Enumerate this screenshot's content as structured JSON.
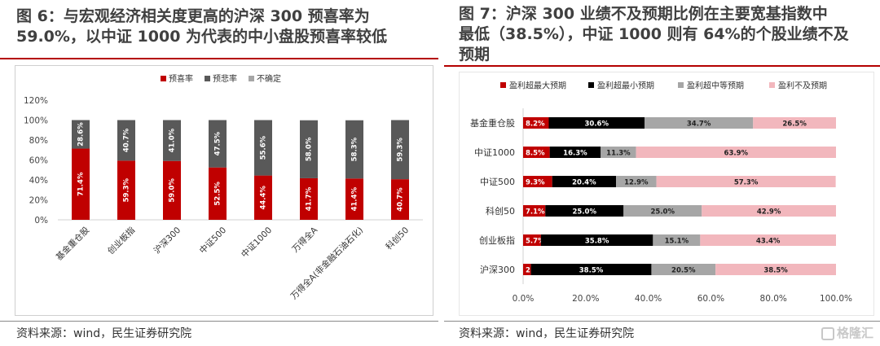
{
  "colors": {
    "red": "#c00000",
    "gray": "#595959",
    "lightgray": "#a6a6a6",
    "black": "#000000",
    "pink": "#f2b7bd"
  },
  "left": {
    "title_line1": "图 6：与宏观经济相关度更高的沪深 300 预喜率为",
    "title_line2": "59.0%，以中证 1000 为代表的中小盘股预喜率较低",
    "source": "资料来源：wind，民生证券研究院"
  },
  "right": {
    "title_line1": "图 7：沪深 300 业绩不及预期比例在主要宽基指数中",
    "title_line2": "最低（38.5%），中证 1000 则有 64%的个股业绩不及",
    "title_line3": "预期",
    "source": "资料来源：wind，民生证券研究院"
  },
  "watermark": "格隆汇",
  "chart_data": [
    {
      "type": "bar",
      "stacked": true,
      "categories": [
        "基金重仓股",
        "创业板指",
        "沪深300",
        "中证500",
        "中证1000",
        "万得全A",
        "万得全A(非金融石油石化)",
        "科创50"
      ],
      "series": [
        {
          "name": "预喜率",
          "values": [
            71.4,
            59.3,
            59.0,
            52.5,
            44.4,
            41.7,
            41.4,
            40.7
          ]
        },
        {
          "name": "预悲率",
          "values": [
            28.6,
            40.7,
            41.0,
            47.5,
            55.6,
            58.0,
            58.3,
            59.3
          ]
        },
        {
          "name": "不确定",
          "values": [
            0,
            0,
            0,
            0,
            0,
            0.3,
            0.3,
            0
          ]
        }
      ],
      "yticks": [
        "0%",
        "20%",
        "40%",
        "60%",
        "80%",
        "100%",
        "120%"
      ],
      "ylim": [
        0,
        120
      ],
      "legend_position": "top",
      "grid": false
    },
    {
      "type": "bar",
      "orientation": "horizontal",
      "stacked": true,
      "categories": [
        "基金重仓股",
        "中证1000",
        "中证500",
        "科创50",
        "创业板指",
        "沪深300"
      ],
      "series": [
        {
          "name": "盈利超最大预期",
          "values": [
            8.2,
            8.5,
            9.3,
            7.1,
            5.7,
            2.5
          ]
        },
        {
          "name": "盈利超最小预期",
          "values": [
            30.6,
            16.3,
            20.4,
            25.0,
            35.8,
            38.5
          ]
        },
        {
          "name": "盈利超中等预期",
          "values": [
            34.7,
            11.3,
            12.9,
            25.0,
            15.1,
            20.5
          ]
        },
        {
          "name": "盈利不及预期",
          "values": [
            26.5,
            63.9,
            57.3,
            42.9,
            43.4,
            38.5
          ]
        }
      ],
      "xticks": [
        "0.0%",
        "20.0%",
        "40.0%",
        "60.0%",
        "80.0%",
        "100.0%"
      ],
      "xlim": [
        0,
        100
      ],
      "legend_position": "top",
      "grid": false
    }
  ]
}
